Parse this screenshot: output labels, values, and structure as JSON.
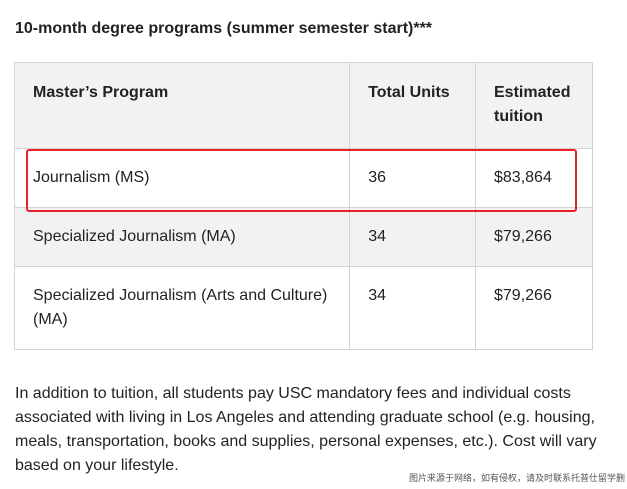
{
  "heading": "10-month degree programs (summer semester start)***",
  "table": {
    "headers": {
      "program": "Master’s Program",
      "units": "Total Units",
      "tuition": "Estimated tuition"
    },
    "rows": [
      {
        "program": "Journalism (MS)",
        "units": "36",
        "tuition": "$83,864",
        "highlighted": true
      },
      {
        "program": "Specialized Journalism (MA)",
        "units": "34",
        "tuition": "$79,266",
        "highlighted": false
      },
      {
        "program": "Specialized Journalism (Arts and Culture) (MA)",
        "units": "34",
        "tuition": "$79,266",
        "highlighted": false
      }
    ]
  },
  "highlight_color": "#e8222a",
  "paragraph": "In addition to tuition, all students pay USC mandatory fees and individual costs associated with living in Los Angeles and attending graduate school (e.g. housing, meals, transportation, books and supplies, personal expenses, etc.). Cost will vary based on your lifestyle.",
  "watermark": "图片来源于网络，如有侵权，请及时联系托普仕留学删"
}
